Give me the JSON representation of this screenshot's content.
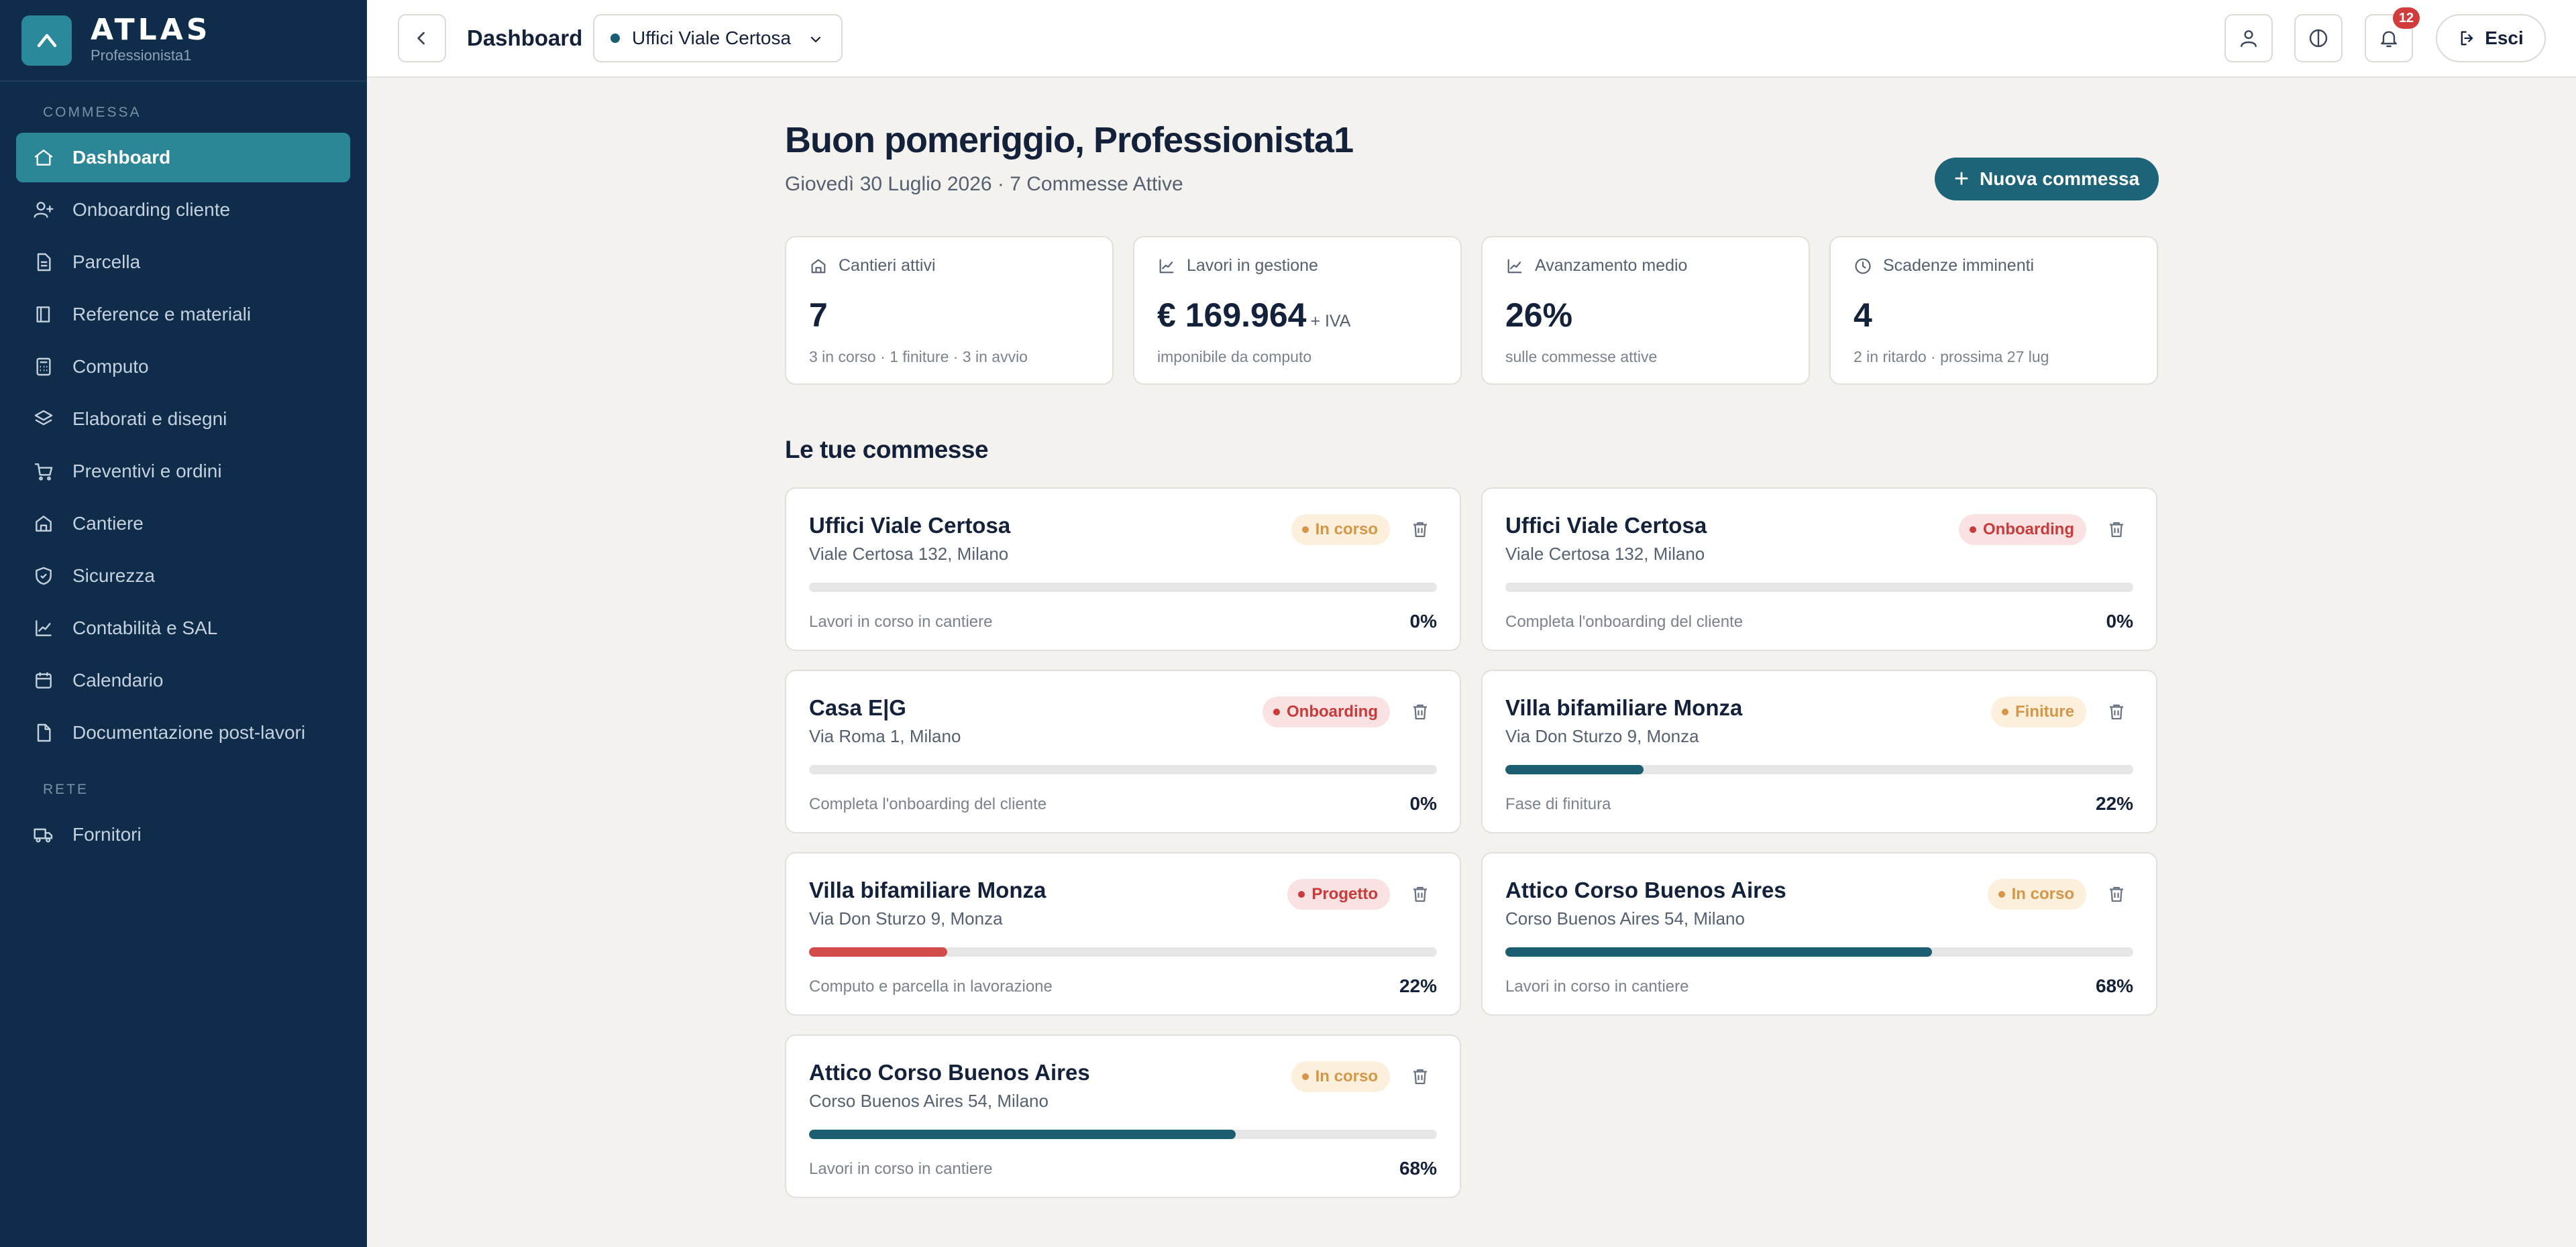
{
  "brand": {
    "name": "ATLAS",
    "user": "Professionista1"
  },
  "sidebar": {
    "section_commessa": "COMMESSA",
    "section_rete": "RETE",
    "items": [
      {
        "label": "Dashboard",
        "icon": "home-icon"
      },
      {
        "label": "Onboarding cliente",
        "icon": "user-plus-icon"
      },
      {
        "label": "Parcella",
        "icon": "document-icon"
      },
      {
        "label": "Reference e materiali",
        "icon": "book-icon"
      },
      {
        "label": "Computo",
        "icon": "calculator-icon"
      },
      {
        "label": "Elaborati e disegni",
        "icon": "layers-icon"
      },
      {
        "label": "Preventivi e ordini",
        "icon": "cart-icon"
      },
      {
        "label": "Cantiere",
        "icon": "building-icon"
      },
      {
        "label": "Sicurezza",
        "icon": "shield-icon"
      },
      {
        "label": "Contabilità e SAL",
        "icon": "chart-icon"
      },
      {
        "label": "Calendario",
        "icon": "calendar-icon"
      },
      {
        "label": "Documentazione post-lavori",
        "icon": "file-icon"
      }
    ],
    "rete_items": [
      {
        "label": "Fornitori",
        "icon": "truck-icon"
      }
    ]
  },
  "topbar": {
    "title": "Dashboard",
    "project": "Uffici Viale Certosa",
    "notifications": "12",
    "logout": "Esci"
  },
  "main": {
    "greeting": "Buon pomeriggio, Professionista1",
    "subgreeting": "Giovedì 30 Luglio 2026 · 7 Commesse Attive",
    "new_button": "Nuova commessa",
    "section_title": "Le tue commesse"
  },
  "stats": [
    {
      "label": "Cantieri attivi",
      "value": "7",
      "suffix": "",
      "sub": "3 in corso · 1 finiture · 3 in avvio",
      "icon": "building-icon"
    },
    {
      "label": "Lavori in gestione",
      "value": "€ 169.964",
      "suffix": "+ IVA",
      "sub": "imponibile da computo",
      "icon": "chart-icon"
    },
    {
      "label": "Avanzamento medio",
      "value": "26%",
      "suffix": "",
      "sub": "sulle commesse attive",
      "icon": "chart-icon"
    },
    {
      "label": "Scadenze imminenti",
      "value": "4",
      "suffix": "",
      "sub": "2 in ritardo · prossima 27 lug",
      "icon": "clock-icon"
    }
  ],
  "projects": [
    {
      "title": "Uffici Viale Certosa",
      "address": "Viale Certosa 132, Milano",
      "status": "In corso",
      "status_color": "#d69648",
      "progress": 0,
      "bar_color": "#1b5e72",
      "note": "Lavori in corso in cantiere",
      "pct": "0%"
    },
    {
      "title": "Uffici Viale Certosa",
      "address": "Viale Certosa 132, Milano",
      "status": "Onboarding",
      "status_color": "#c93a3a",
      "progress": 0,
      "bar_color": "#1b5e72",
      "note": "Completa l'onboarding del cliente",
      "pct": "0%"
    },
    {
      "title": "Casa E|G",
      "address": "Via Roma 1, Milano",
      "status": "Onboarding",
      "status_color": "#c93a3a",
      "progress": 0,
      "bar_color": "#1b5e72",
      "note": "Completa l'onboarding del cliente",
      "pct": "0%"
    },
    {
      "title": "Villa bifamiliare Monza",
      "address": "Via Don Sturzo 9, Monza",
      "status": "Finiture",
      "status_color": "#d69648",
      "progress": 22,
      "bar_color": "#1b5e72",
      "note": "Fase di finitura",
      "pct": "22%"
    },
    {
      "title": "Villa bifamiliare Monza",
      "address": "Via Don Sturzo 9, Monza",
      "status": "Progetto",
      "status_color": "#c93a3a",
      "progress": 22,
      "bar_color": "#d24a4a",
      "note": "Computo e parcella in lavorazione",
      "pct": "22%"
    },
    {
      "title": "Attico Corso Buenos Aires",
      "address": "Corso Buenos Aires 54, Milano",
      "status": "In corso",
      "status_color": "#d69648",
      "progress": 68,
      "bar_color": "#1b5e72",
      "note": "Lavori in corso in cantiere",
      "pct": "68%"
    },
    {
      "title": "Attico Corso Buenos Aires",
      "address": "Corso Buenos Aires 54, Milano",
      "status": "In corso",
      "status_color": "#d69648",
      "progress": 68,
      "bar_color": "#1b5e72",
      "note": "Lavori in corso in cantiere",
      "pct": "68%"
    }
  ]
}
